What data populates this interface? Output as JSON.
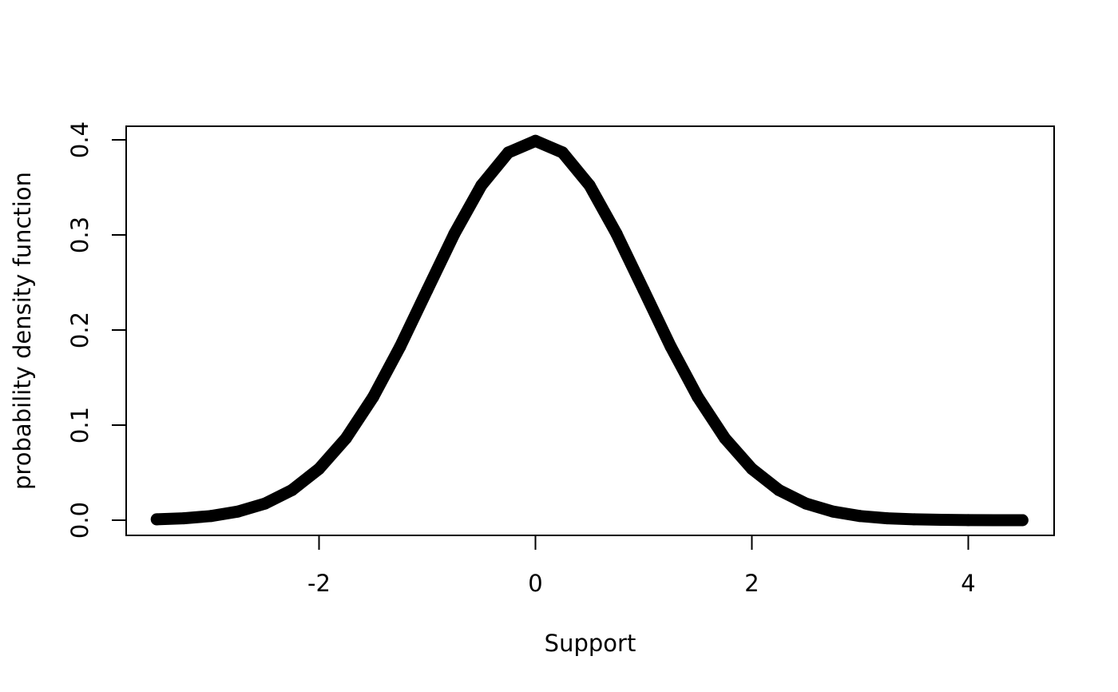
{
  "chart_data": {
    "type": "line",
    "title": "",
    "xlabel": "Support",
    "ylabel": "probability density function",
    "xlim": [
      -3.5,
      4.5
    ],
    "ylim": [
      0,
      0.4
    ],
    "x_ticks": [
      -2,
      0,
      2,
      4
    ],
    "x_tick_labels": [
      "-2",
      "0",
      "2",
      "4"
    ],
    "y_ticks": [
      0,
      0.1,
      0.2,
      0.3,
      0.4
    ],
    "y_tick_labels": [
      "0.0",
      "0.1",
      "0.2",
      "0.3",
      "0.4"
    ],
    "grid": false,
    "series": [
      {
        "color": "#000000",
        "x": [
          -3.5,
          -3.25,
          -3.0,
          -2.75,
          -2.5,
          -2.25,
          -2.0,
          -1.75,
          -1.5,
          -1.25,
          -1.0,
          -0.75,
          -0.5,
          -0.25,
          0.0,
          0.25,
          0.5,
          0.75,
          1.0,
          1.25,
          1.5,
          1.75,
          2.0,
          2.25,
          2.5,
          2.75,
          3.0,
          3.25,
          3.5,
          3.75,
          4.0,
          4.25,
          4.5
        ],
        "y": [
          0.0009,
          0.002,
          0.0044,
          0.0091,
          0.0175,
          0.0317,
          0.054,
          0.0863,
          0.1295,
          0.1826,
          0.242,
          0.3011,
          0.3521,
          0.3867,
          0.3989,
          0.3867,
          0.3521,
          0.3011,
          0.242,
          0.1826,
          0.1295,
          0.0863,
          0.054,
          0.0317,
          0.0175,
          0.0091,
          0.0044,
          0.002,
          0.0009,
          0.0004,
          0.0001,
          0.0,
          0.0
        ]
      }
    ]
  }
}
